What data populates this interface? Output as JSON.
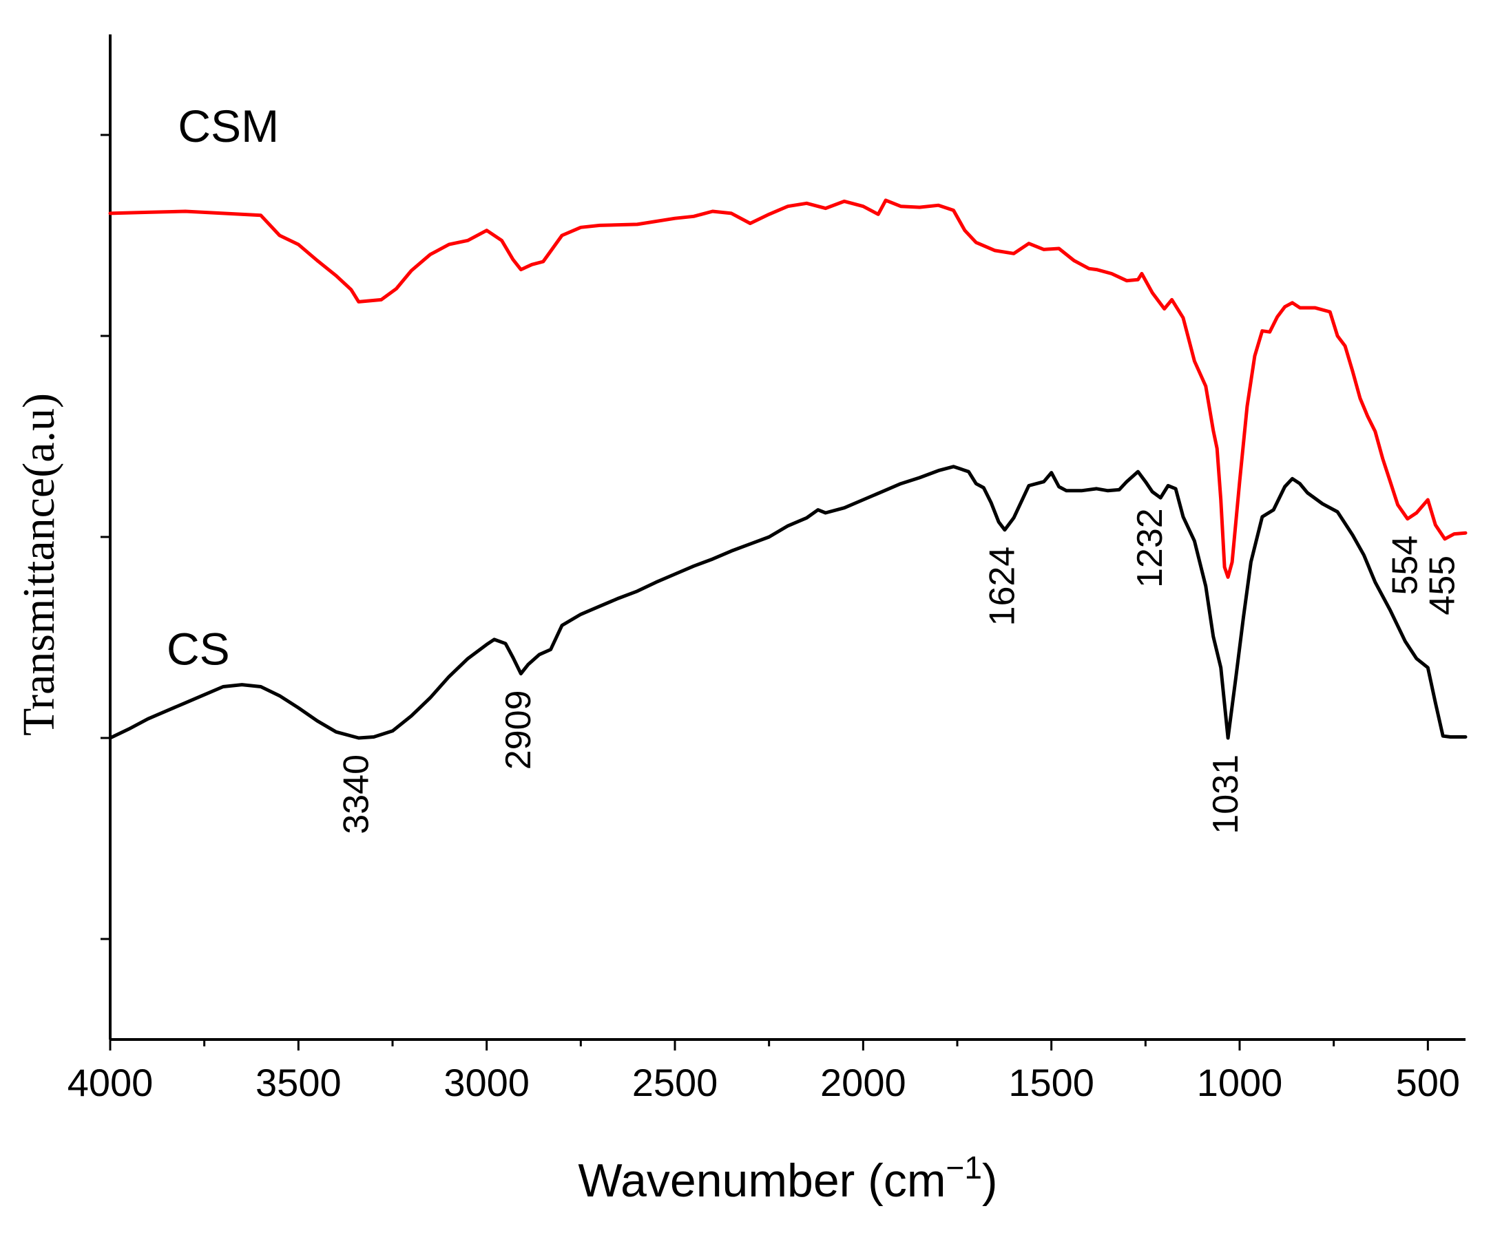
{
  "chart_data": {
    "type": "line",
    "title": "",
    "xlabel": "Wavenumber (cm",
    "xlabel_sup": "−1",
    "xlabel_close": ")",
    "ylabel": "Transmittance(a.u)",
    "xlim": [
      4000,
      400
    ],
    "ylim": [
      0,
      100
    ],
    "x_ticks": [
      4000,
      3500,
      3000,
      2500,
      2000,
      1500,
      1000,
      500
    ],
    "x_tick_labels": [
      "4000",
      "3500",
      "3000",
      "2500",
      "2000",
      "1500",
      "1000",
      "500"
    ],
    "x_minor_ticks": [
      3750,
      3250,
      2750,
      2250,
      1750,
      1250,
      750
    ],
    "y_ticks": [
      10,
      30,
      50,
      70,
      90
    ],
    "grid": false,
    "series": [
      {
        "name": "CSM",
        "color": "#ff0000",
        "points": [
          [
            4000,
            82.2
          ],
          [
            3900,
            82.3
          ],
          [
            3800,
            82.4
          ],
          [
            3700,
            82.2
          ],
          [
            3600,
            82.0
          ],
          [
            3550,
            80.0
          ],
          [
            3500,
            79.1
          ],
          [
            3450,
            77.5
          ],
          [
            3400,
            76.0
          ],
          [
            3360,
            74.6
          ],
          [
            3340,
            73.4
          ],
          [
            3280,
            73.6
          ],
          [
            3240,
            74.7
          ],
          [
            3200,
            76.5
          ],
          [
            3150,
            78.1
          ],
          [
            3100,
            79.1
          ],
          [
            3050,
            79.5
          ],
          [
            3000,
            80.5
          ],
          [
            2960,
            79.5
          ],
          [
            2930,
            77.6
          ],
          [
            2909,
            76.6
          ],
          [
            2880,
            77.1
          ],
          [
            2850,
            77.4
          ],
          [
            2800,
            80.0
          ],
          [
            2750,
            80.8
          ],
          [
            2700,
            81.0
          ],
          [
            2600,
            81.1
          ],
          [
            2500,
            81.7
          ],
          [
            2450,
            81.9
          ],
          [
            2400,
            82.4
          ],
          [
            2350,
            82.2
          ],
          [
            2300,
            81.2
          ],
          [
            2250,
            82.1
          ],
          [
            2200,
            82.9
          ],
          [
            2150,
            83.2
          ],
          [
            2100,
            82.7
          ],
          [
            2050,
            83.4
          ],
          [
            2000,
            82.9
          ],
          [
            1960,
            82.1
          ],
          [
            1940,
            83.5
          ],
          [
            1900,
            82.9
          ],
          [
            1850,
            82.8
          ],
          [
            1800,
            83.0
          ],
          [
            1760,
            82.5
          ],
          [
            1730,
            80.5
          ],
          [
            1700,
            79.3
          ],
          [
            1650,
            78.5
          ],
          [
            1600,
            78.2
          ],
          [
            1560,
            79.2
          ],
          [
            1520,
            78.6
          ],
          [
            1480,
            78.7
          ],
          [
            1440,
            77.5
          ],
          [
            1400,
            76.7
          ],
          [
            1380,
            76.6
          ],
          [
            1340,
            76.2
          ],
          [
            1300,
            75.5
          ],
          [
            1270,
            75.6
          ],
          [
            1260,
            76.2
          ],
          [
            1232,
            74.3
          ],
          [
            1200,
            72.7
          ],
          [
            1180,
            73.6
          ],
          [
            1150,
            71.8
          ],
          [
            1120,
            67.5
          ],
          [
            1090,
            65.0
          ],
          [
            1070,
            60.6
          ],
          [
            1060,
            58.8
          ],
          [
            1050,
            53.7
          ],
          [
            1040,
            47.0
          ],
          [
            1031,
            46.0
          ],
          [
            1020,
            47.5
          ],
          [
            1000,
            55.5
          ],
          [
            980,
            63.0
          ],
          [
            960,
            68.0
          ],
          [
            940,
            70.5
          ],
          [
            920,
            70.4
          ],
          [
            900,
            71.9
          ],
          [
            880,
            72.9
          ],
          [
            860,
            73.3
          ],
          [
            840,
            72.8
          ],
          [
            800,
            72.8
          ],
          [
            760,
            72.4
          ],
          [
            740,
            70.0
          ],
          [
            720,
            69.0
          ],
          [
            700,
            66.5
          ],
          [
            680,
            63.8
          ],
          [
            660,
            62.0
          ],
          [
            640,
            60.5
          ],
          [
            620,
            57.8
          ],
          [
            600,
            55.5
          ],
          [
            580,
            53.2
          ],
          [
            554,
            51.8
          ],
          [
            530,
            52.4
          ],
          [
            500,
            53.7
          ],
          [
            480,
            51.2
          ],
          [
            455,
            49.8
          ],
          [
            430,
            50.3
          ],
          [
            400,
            50.4
          ]
        ]
      },
      {
        "name": "CS",
        "color": "#000000",
        "points": [
          [
            4000,
            30.0
          ],
          [
            3950,
            30.9
          ],
          [
            3900,
            31.9
          ],
          [
            3850,
            32.7
          ],
          [
            3800,
            33.5
          ],
          [
            3750,
            34.3
          ],
          [
            3700,
            35.1
          ],
          [
            3650,
            35.3
          ],
          [
            3600,
            35.1
          ],
          [
            3550,
            34.2
          ],
          [
            3500,
            33.0
          ],
          [
            3450,
            31.7
          ],
          [
            3400,
            30.6
          ],
          [
            3340,
            30.0
          ],
          [
            3300,
            30.1
          ],
          [
            3250,
            30.7
          ],
          [
            3200,
            32.2
          ],
          [
            3150,
            34.0
          ],
          [
            3100,
            36.1
          ],
          [
            3050,
            37.9
          ],
          [
            3000,
            39.3
          ],
          [
            2980,
            39.8
          ],
          [
            2950,
            39.4
          ],
          [
            2930,
            38.0
          ],
          [
            2909,
            36.4
          ],
          [
            2890,
            37.3
          ],
          [
            2860,
            38.3
          ],
          [
            2830,
            38.8
          ],
          [
            2800,
            41.2
          ],
          [
            2750,
            42.3
          ],
          [
            2700,
            43.1
          ],
          [
            2650,
            43.9
          ],
          [
            2600,
            44.6
          ],
          [
            2550,
            45.5
          ],
          [
            2500,
            46.3
          ],
          [
            2450,
            47.1
          ],
          [
            2400,
            47.8
          ],
          [
            2350,
            48.6
          ],
          [
            2300,
            49.3
          ],
          [
            2250,
            50.0
          ],
          [
            2200,
            51.1
          ],
          [
            2150,
            51.9
          ],
          [
            2120,
            52.7
          ],
          [
            2100,
            52.4
          ],
          [
            2050,
            52.9
          ],
          [
            2000,
            53.7
          ],
          [
            1950,
            54.5
          ],
          [
            1900,
            55.3
          ],
          [
            1850,
            55.9
          ],
          [
            1800,
            56.6
          ],
          [
            1760,
            57.0
          ],
          [
            1720,
            56.5
          ],
          [
            1700,
            55.3
          ],
          [
            1680,
            54.9
          ],
          [
            1660,
            53.4
          ],
          [
            1640,
            51.5
          ],
          [
            1624,
            50.7
          ],
          [
            1600,
            51.9
          ],
          [
            1560,
            55.1
          ],
          [
            1520,
            55.5
          ],
          [
            1500,
            56.4
          ],
          [
            1480,
            55.0
          ],
          [
            1460,
            54.6
          ],
          [
            1420,
            54.6
          ],
          [
            1380,
            54.8
          ],
          [
            1350,
            54.6
          ],
          [
            1320,
            54.7
          ],
          [
            1300,
            55.5
          ],
          [
            1270,
            56.5
          ],
          [
            1250,
            55.5
          ],
          [
            1232,
            54.5
          ],
          [
            1210,
            53.9
          ],
          [
            1190,
            55.1
          ],
          [
            1170,
            54.8
          ],
          [
            1150,
            52.0
          ],
          [
            1120,
            49.6
          ],
          [
            1090,
            45.1
          ],
          [
            1070,
            40.1
          ],
          [
            1050,
            37.0
          ],
          [
            1031,
            30.0
          ],
          [
            1010,
            36.0
          ],
          [
            990,
            42.0
          ],
          [
            970,
            47.5
          ],
          [
            940,
            52.0
          ],
          [
            910,
            52.7
          ],
          [
            880,
            55.0
          ],
          [
            860,
            55.8
          ],
          [
            840,
            55.3
          ],
          [
            820,
            54.4
          ],
          [
            780,
            53.3
          ],
          [
            740,
            52.5
          ],
          [
            700,
            50.2
          ],
          [
            670,
            48.2
          ],
          [
            640,
            45.5
          ],
          [
            600,
            42.7
          ],
          [
            560,
            39.6
          ],
          [
            530,
            37.9
          ],
          [
            500,
            37.0
          ],
          [
            480,
            33.5
          ],
          [
            460,
            30.2
          ],
          [
            440,
            30.1
          ],
          [
            400,
            30.1
          ]
        ]
      }
    ],
    "series_labels": [
      {
        "text": "CSM",
        "x": 3820,
        "y": 90.5
      },
      {
        "text": "CS",
        "x": 3850,
        "y": 38.5
      }
    ],
    "peak_annotations": [
      {
        "label": "3340",
        "x": 3340,
        "y": 30.0,
        "offset": 24
      },
      {
        "label": "2909",
        "x": 2909,
        "y": 36.4,
        "offset": 24
      },
      {
        "label": "1624",
        "x": 1624,
        "y": 50.7,
        "offset": 24
      },
      {
        "label": "1232",
        "x": 1232,
        "y": 54.5,
        "offset": 24
      },
      {
        "label": "1031",
        "x": 1031,
        "y": 30.0,
        "offset": 24
      },
      {
        "label": "554",
        "x": 554,
        "y": 51.8,
        "offset": 24
      },
      {
        "label": "455",
        "x": 455,
        "y": 49.8,
        "offset": 24
      }
    ]
  }
}
